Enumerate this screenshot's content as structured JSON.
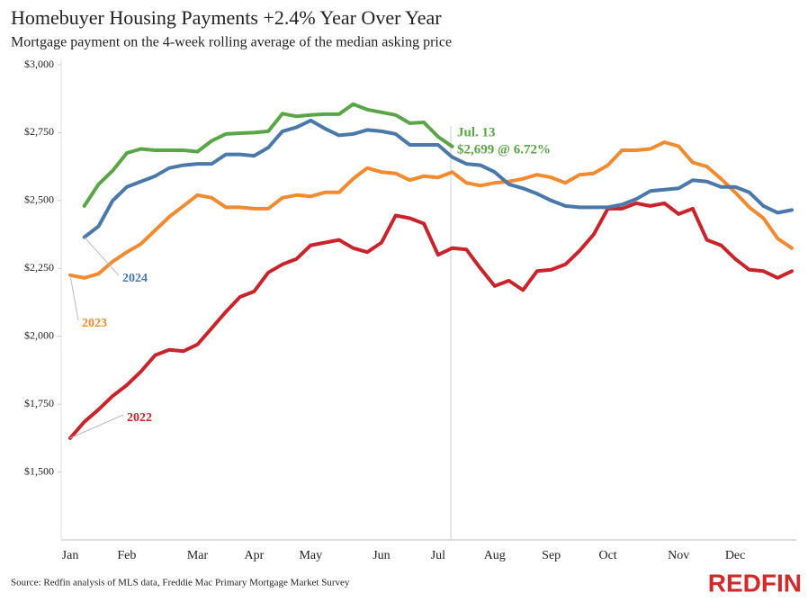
{
  "chart_data": {
    "type": "line",
    "title": "Homebuyer Housing Payments +2.4% Year Over Year",
    "subtitle": "Mortgage payment on the 4-week rolling average of the median asking price",
    "source": "Source: Redfin analysis of MLS data, Freddie Mac Primary Mortgage Market Survey",
    "brand": "REDFIN",
    "categories": [
      "Jan",
      null,
      null,
      null,
      "Feb",
      null,
      null,
      null,
      null,
      "Mar",
      null,
      null,
      null,
      "Apr",
      null,
      null,
      null,
      "May",
      null,
      null,
      null,
      null,
      "Jun",
      null,
      null,
      null,
      "Jul",
      null,
      null,
      null,
      "Aug",
      null,
      null,
      null,
      "Sep",
      null,
      null,
      null,
      "Oct",
      null,
      null,
      null,
      null,
      "Nov",
      null,
      null,
      null,
      "Dec",
      null,
      null,
      null,
      null
    ],
    "ylim": [
      1250,
      3000
    ],
    "yticks": [
      {
        "value": 1500,
        "label": "$1,500"
      },
      {
        "value": 1750,
        "label": "$1,750"
      },
      {
        "value": 2000,
        "label": "$2,000"
      },
      {
        "value": 2250,
        "label": "$2,250"
      },
      {
        "value": 2500,
        "label": "$2,500"
      },
      {
        "value": 2750,
        "label": "$2,750"
      },
      {
        "value": 3000,
        "label": "$3,000"
      }
    ],
    "grid": false,
    "series": [
      {
        "name": "2022",
        "color": "#c8242b",
        "values": [
          1625,
          1685,
          1730,
          1780,
          1820,
          1870,
          1930,
          1950,
          1945,
          1970,
          2030,
          2090,
          2145,
          2165,
          2235,
          2265,
          2285,
          2335,
          2345,
          2355,
          2325,
          2310,
          2345,
          2445,
          2435,
          2415,
          2300,
          2325,
          2320,
          2250,
          2185,
          2205,
          2170,
          2240,
          2245,
          2265,
          2315,
          2375,
          2470,
          2470,
          2490,
          2480,
          2490,
          2450,
          2470,
          2355,
          2335,
          2285,
          2245,
          2240,
          2215,
          2240
        ]
      },
      {
        "name": "2023",
        "color": "#f28a30",
        "values": [
          2225,
          2215,
          2230,
          2275,
          2310,
          2340,
          2390,
          2440,
          2480,
          2520,
          2510,
          2475,
          2475,
          2470,
          2470,
          2510,
          2520,
          2515,
          2530,
          2530,
          2580,
          2620,
          2605,
          2600,
          2575,
          2590,
          2585,
          2605,
          2565,
          2555,
          2565,
          2570,
          2580,
          2595,
          2585,
          2565,
          2595,
          2600,
          2630,
          2685,
          2685,
          2690,
          2715,
          2700,
          2640,
          2625,
          2580,
          2530,
          2475,
          2435,
          2360,
          2325
        ]
      },
      {
        "name": "2024",
        "color": "#4a78aa",
        "values": [
          null,
          2365,
          2405,
          2500,
          2550,
          2570,
          2590,
          2620,
          2630,
          2635,
          2635,
          2670,
          2670,
          2665,
          2695,
          2755,
          2770,
          2795,
          2765,
          2740,
          2745,
          2760,
          2755,
          2745,
          2705,
          2705,
          2705,
          2660,
          2635,
          2630,
          2605,
          2560,
          2545,
          2525,
          2500,
          2480,
          2475,
          2475,
          2475,
          2485,
          2505,
          2535,
          2540,
          2545,
          2575,
          2570,
          2550,
          2550,
          2530,
          2480,
          2455,
          2465
        ]
      },
      {
        "color": "#5aa546",
        "values": [
          null,
          2480,
          2560,
          2610,
          2675,
          2690,
          2685,
          2685,
          2685,
          2680,
          2720,
          2745,
          2748,
          2750,
          2755,
          2820,
          2810,
          2815,
          2818,
          2818,
          2855,
          2835,
          2825,
          2815,
          2785,
          2788,
          2735,
          2699,
          null,
          null,
          null,
          null,
          null,
          null,
          null,
          null,
          null,
          null,
          null,
          null,
          null,
          null,
          null,
          null,
          null,
          null,
          null,
          null,
          null,
          null,
          null,
          null
        ]
      }
    ],
    "annotations": [
      "Jul. 13",
      "$2,699 @ 6.72%"
    ]
  }
}
